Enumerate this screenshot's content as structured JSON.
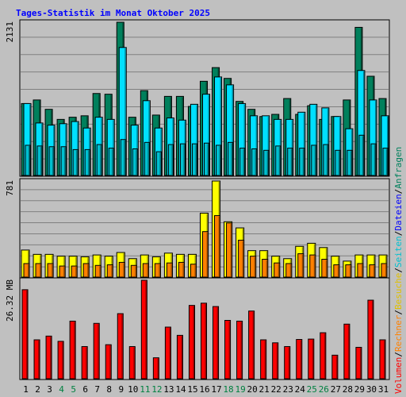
{
  "title": "Tages-Statistik im Monat Oktober 2025",
  "colors": {
    "background": "#c0c0c0",
    "title": "#0000ff",
    "anfragen": "#00805c",
    "dateien": "#00e0ff",
    "seiten": "#00c0d0",
    "besuche": "#ffff00",
    "rechner": "#ff8000",
    "volumen": "#ff0000",
    "weekend_label": "#008040",
    "gridline": "#808080"
  },
  "chart_data": [
    {
      "type": "bar",
      "panel": "top",
      "ymax_label": "2131",
      "ylim": [
        0,
        2131
      ],
      "categories": [
        1,
        2,
        3,
        4,
        5,
        6,
        7,
        8,
        9,
        10,
        11,
        12,
        13,
        14,
        15,
        16,
        17,
        18,
        19,
        20,
        21,
        22,
        23,
        24,
        25,
        26,
        27,
        28,
        29,
        30,
        31
      ],
      "series": [
        {
          "name": "Anfragen",
          "values": [
            1000,
            1050,
            920,
            780,
            810,
            830,
            1140,
            1130,
            2131,
            810,
            1180,
            840,
            1100,
            1100,
            960,
            1310,
            1500,
            1350,
            1030,
            920,
            820,
            850,
            1070,
            850,
            970,
            780,
            820,
            1050,
            2060,
            1380,
            1070
          ]
        },
        {
          "name": "Dateien",
          "values": [
            1000,
            730,
            700,
            720,
            750,
            660,
            810,
            780,
            1780,
            700,
            1040,
            660,
            800,
            770,
            990,
            1130,
            1370,
            1260,
            1000,
            830,
            830,
            780,
            780,
            880,
            990,
            940,
            820,
            650,
            1460,
            1050,
            830
          ]
        },
        {
          "name": "Seiten",
          "values": [
            420,
            410,
            400,
            400,
            360,
            360,
            430,
            380,
            500,
            370,
            460,
            330,
            430,
            440,
            440,
            450,
            420,
            460,
            380,
            370,
            350,
            410,
            380,
            380,
            420,
            430,
            350,
            350,
            560,
            440,
            380
          ]
        }
      ]
    },
    {
      "type": "bar",
      "panel": "middle",
      "ymax_label": "781",
      "ylim": [
        0,
        781
      ],
      "categories": [
        1,
        2,
        3,
        4,
        5,
        6,
        7,
        8,
        9,
        10,
        11,
        12,
        13,
        14,
        15,
        16,
        17,
        18,
        19,
        20,
        21,
        22,
        23,
        24,
        25,
        26,
        27,
        28,
        29,
        30,
        31
      ],
      "series": [
        {
          "name": "Besuche",
          "values": [
            220,
            185,
            185,
            170,
            170,
            165,
            180,
            170,
            200,
            150,
            180,
            165,
            195,
            185,
            185,
            520,
            781,
            450,
            400,
            215,
            215,
            170,
            150,
            250,
            275,
            240,
            170,
            130,
            180,
            180,
            180
          ]
        },
        {
          "name": "Rechner",
          "values": [
            110,
            110,
            110,
            90,
            90,
            110,
            95,
            100,
            120,
            95,
            110,
            110,
            115,
            120,
            105,
            370,
            500,
            440,
            300,
            170,
            145,
            115,
            110,
            190,
            180,
            145,
            100,
            100,
            110,
            100,
            110
          ]
        }
      ]
    },
    {
      "type": "bar",
      "panel": "bottom",
      "ymax_label": "26.32 MB",
      "ylim": [
        0,
        26.32
      ],
      "categories": [
        1,
        2,
        3,
        4,
        5,
        6,
        7,
        8,
        9,
        10,
        11,
        12,
        13,
        14,
        15,
        16,
        17,
        18,
        19,
        20,
        21,
        22,
        23,
        24,
        25,
        26,
        27,
        28,
        29,
        30,
        31
      ],
      "series": [
        {
          "name": "Volumen",
          "values": [
            23.8,
            10.4,
            11.4,
            10.0,
            15.4,
            8.6,
            14.8,
            9.1,
            17.4,
            8.6,
            26.32,
            5.6,
            13.8,
            11.6,
            19.6,
            20.2,
            19.3,
            15.6,
            15.4,
            18.1,
            10.4,
            9.6,
            8.6,
            10.5,
            10.6,
            12.3,
            6.3,
            14.6,
            8.4,
            21.0,
            10.4
          ]
        }
      ]
    }
  ],
  "x_labels": [
    "1",
    "2",
    "3",
    "4",
    "5",
    "6",
    "7",
    "8",
    "9",
    "10",
    "11",
    "12",
    "13",
    "14",
    "15",
    "16",
    "17",
    "18",
    "19",
    "20",
    "21",
    "22",
    "23",
    "24",
    "25",
    "26",
    "27",
    "28",
    "29",
    "30",
    "31"
  ],
  "weekend_days": [
    4,
    5,
    11,
    12,
    18,
    19,
    25,
    26
  ],
  "right_axis_legend": [
    {
      "text": "Volumen",
      "color": "#ff0000"
    },
    {
      "text": "/",
      "color": "#000000"
    },
    {
      "text": "Rechner",
      "color": "#ff8000"
    },
    {
      "text": "/",
      "color": "#000000"
    },
    {
      "text": "Besuche",
      "color": "#e0c000"
    },
    {
      "text": "/",
      "color": "#000000"
    },
    {
      "text": "Seiten",
      "color": "#00c0d0"
    },
    {
      "text": "/",
      "color": "#000000"
    },
    {
      "text": "Dateien",
      "color": "#0000ff"
    },
    {
      "text": "/",
      "color": "#000000"
    },
    {
      "text": "Anfragen",
      "color": "#00805c"
    }
  ]
}
